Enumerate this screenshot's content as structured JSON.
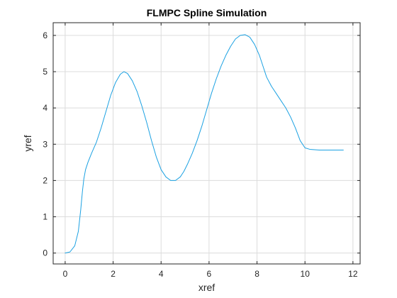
{
  "chart_data": {
    "type": "line",
    "title": "FLMPC Spline Simulation",
    "xlabel": "xref",
    "ylabel": "yref",
    "xlim": [
      -0.5,
      12.3
    ],
    "ylim": [
      -0.3,
      6.35
    ],
    "xticks": [
      0,
      2,
      4,
      6,
      8,
      10,
      12
    ],
    "yticks": [
      0,
      1,
      2,
      3,
      4,
      5,
      6
    ],
    "grid": true,
    "legend": "none",
    "colors": {
      "series": "#1ba1e2",
      "axes": "#262626",
      "grid": "#dcdcdc"
    },
    "series": [
      {
        "x": [
          0.0,
          0.2,
          0.4,
          0.55,
          0.65,
          0.72,
          0.78,
          0.85,
          0.95,
          1.1,
          1.3,
          1.5,
          1.7,
          1.9,
          2.1,
          2.3,
          2.45,
          2.6,
          2.8,
          3.0,
          3.2,
          3.4,
          3.6,
          3.8,
          4.0,
          4.2,
          4.4,
          4.6,
          4.8,
          4.95,
          5.1,
          5.3,
          5.5,
          5.7,
          5.9,
          6.1,
          6.3,
          6.5,
          6.7,
          6.9,
          7.1,
          7.3,
          7.5,
          7.7,
          7.9,
          8.1,
          8.25,
          8.4,
          8.6,
          8.8,
          9.0,
          9.2,
          9.4,
          9.6,
          9.8,
          10.0,
          10.2,
          10.4,
          10.6,
          10.8,
          11.0,
          11.2,
          11.4,
          11.6
        ],
        "y": [
          0.0,
          0.03,
          0.2,
          0.6,
          1.2,
          1.7,
          2.05,
          2.3,
          2.5,
          2.75,
          3.05,
          3.45,
          3.9,
          4.35,
          4.7,
          4.93,
          5.0,
          4.95,
          4.75,
          4.45,
          4.05,
          3.6,
          3.1,
          2.65,
          2.3,
          2.1,
          2.0,
          2.0,
          2.1,
          2.25,
          2.45,
          2.75,
          3.1,
          3.5,
          3.95,
          4.4,
          4.8,
          5.15,
          5.45,
          5.7,
          5.9,
          6.0,
          6.02,
          5.95,
          5.75,
          5.45,
          5.15,
          4.85,
          4.6,
          4.4,
          4.2,
          4.0,
          3.75,
          3.45,
          3.1,
          2.9,
          2.86,
          2.85,
          2.84,
          2.84,
          2.84,
          2.84,
          2.84,
          2.84
        ]
      }
    ]
  }
}
